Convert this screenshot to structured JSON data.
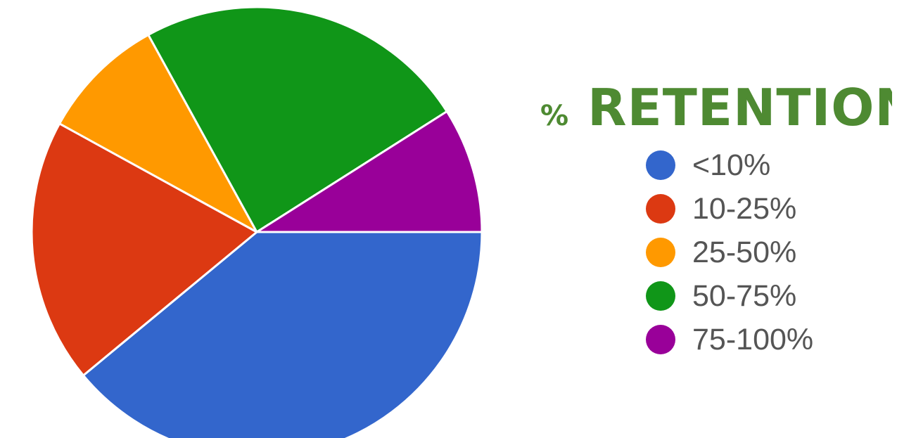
{
  "chart_data": {
    "type": "pie",
    "title": "% RETENTION",
    "categories": [
      "<10%",
      "10-25%",
      "25-50%",
      "50-75%",
      "75-100%"
    ],
    "values": [
      39,
      19,
      9,
      24,
      9
    ],
    "colors": [
      "#3366cc",
      "#dc3912",
      "#ff9900",
      "#109618",
      "#990099"
    ],
    "legend_position": "right"
  }
}
